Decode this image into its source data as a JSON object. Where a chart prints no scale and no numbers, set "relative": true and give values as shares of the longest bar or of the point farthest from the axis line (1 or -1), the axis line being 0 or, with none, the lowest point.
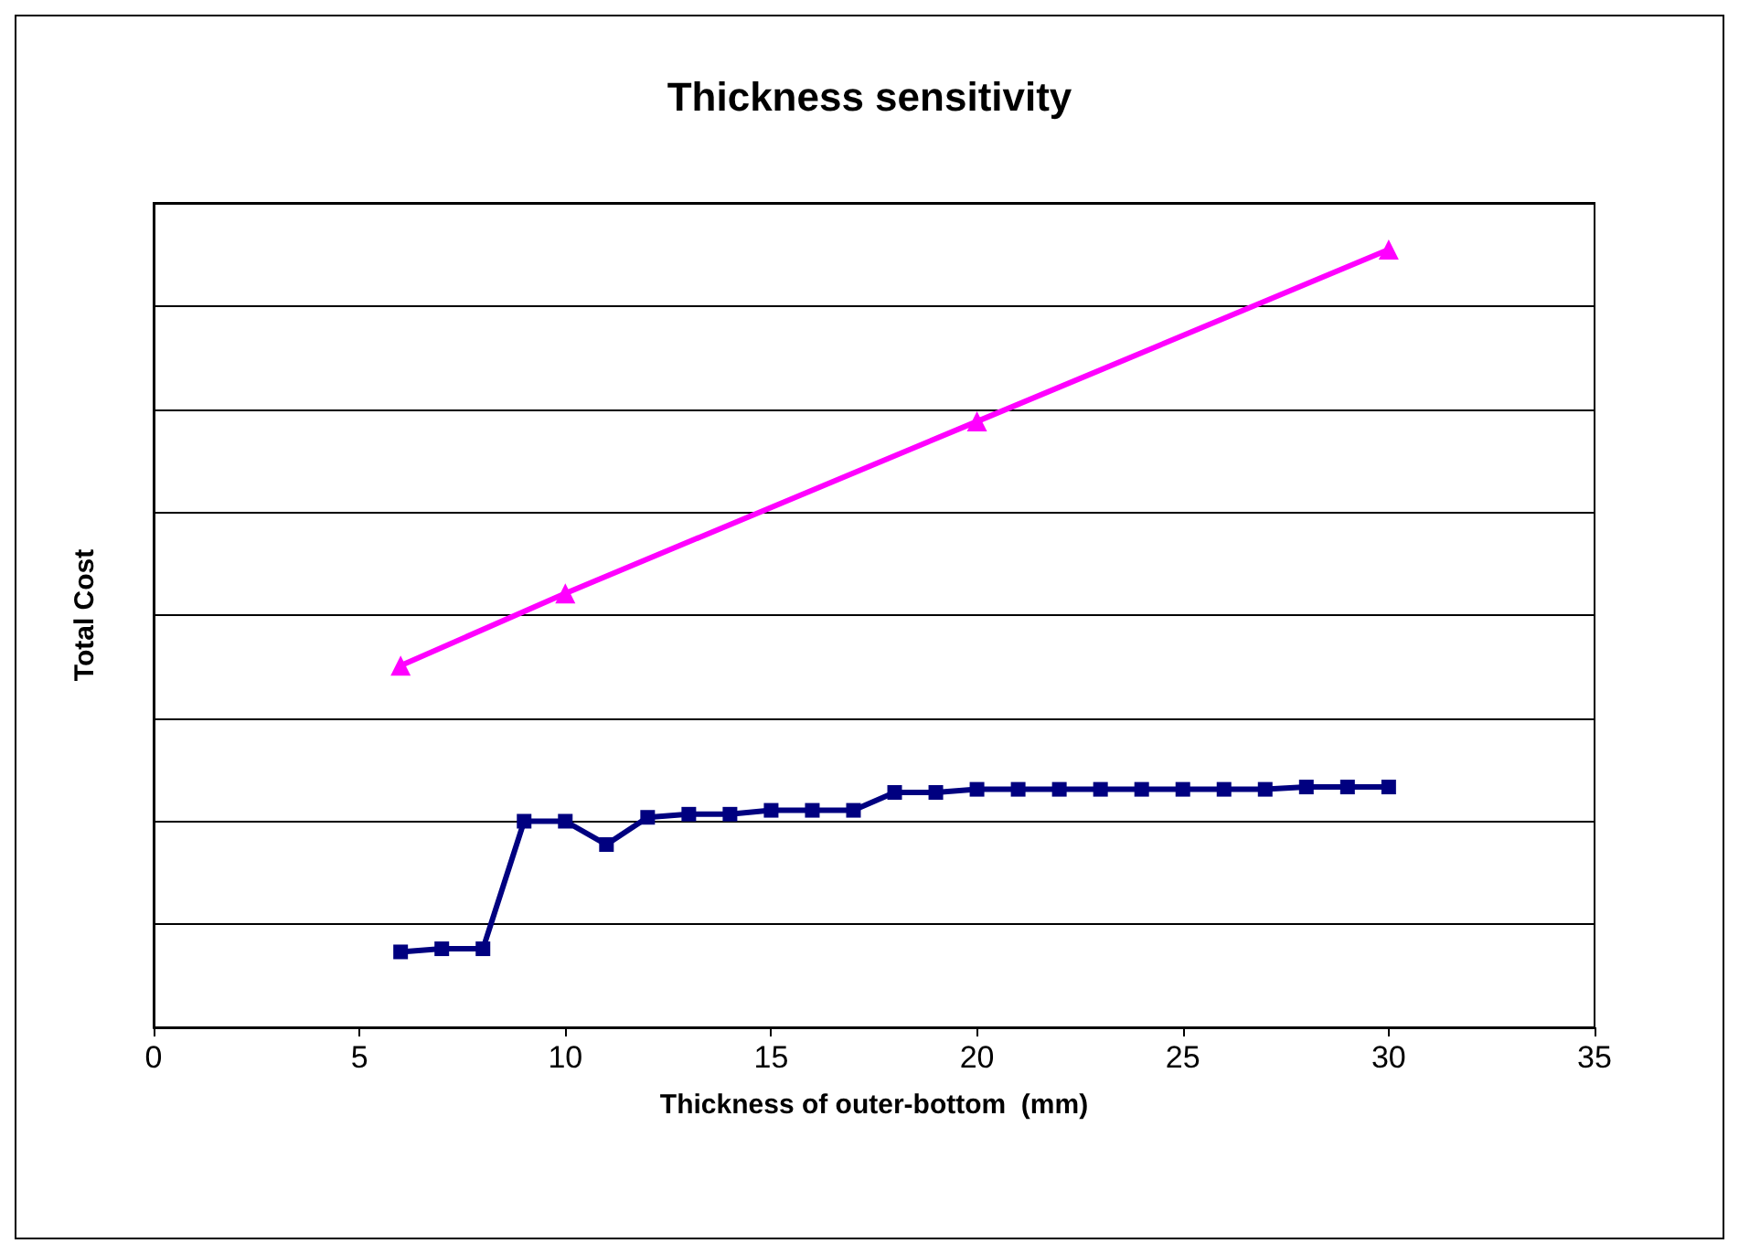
{
  "chart_data": {
    "type": "line",
    "title": "Thickness sensitivity",
    "xlabel": "Thickness of outer-bottom  (mm)",
    "ylabel": "Total Cost",
    "relative": true,
    "grid": "y",
    "xlim": [
      0,
      35
    ],
    "xticks": [
      0,
      5,
      10,
      15,
      20,
      25,
      30,
      35
    ],
    "line_style": "solid",
    "series": [
      {
        "color": "#000080",
        "marker": "square",
        "x": [
          6,
          7,
          8,
          9,
          10,
          11,
          12,
          13,
          14,
          15,
          16,
          17,
          18,
          19,
          20,
          21,
          22,
          23,
          24,
          25,
          26,
          27,
          28,
          29,
          30
        ],
        "values": [
          0.097,
          0.101,
          0.101,
          0.265,
          0.265,
          0.235,
          0.27,
          0.274,
          0.274,
          0.279,
          0.279,
          0.279,
          0.302,
          0.302,
          0.306,
          0.306,
          0.306,
          0.306,
          0.306,
          0.306,
          0.306,
          0.306,
          0.309,
          0.309,
          0.309
        ]
      },
      {
        "color": "#ff00ff",
        "marker": "triangle",
        "x": [
          6,
          10,
          20,
          30
        ],
        "values": [
          0.465,
          0.558,
          0.779,
          1
        ]
      }
    ]
  }
}
